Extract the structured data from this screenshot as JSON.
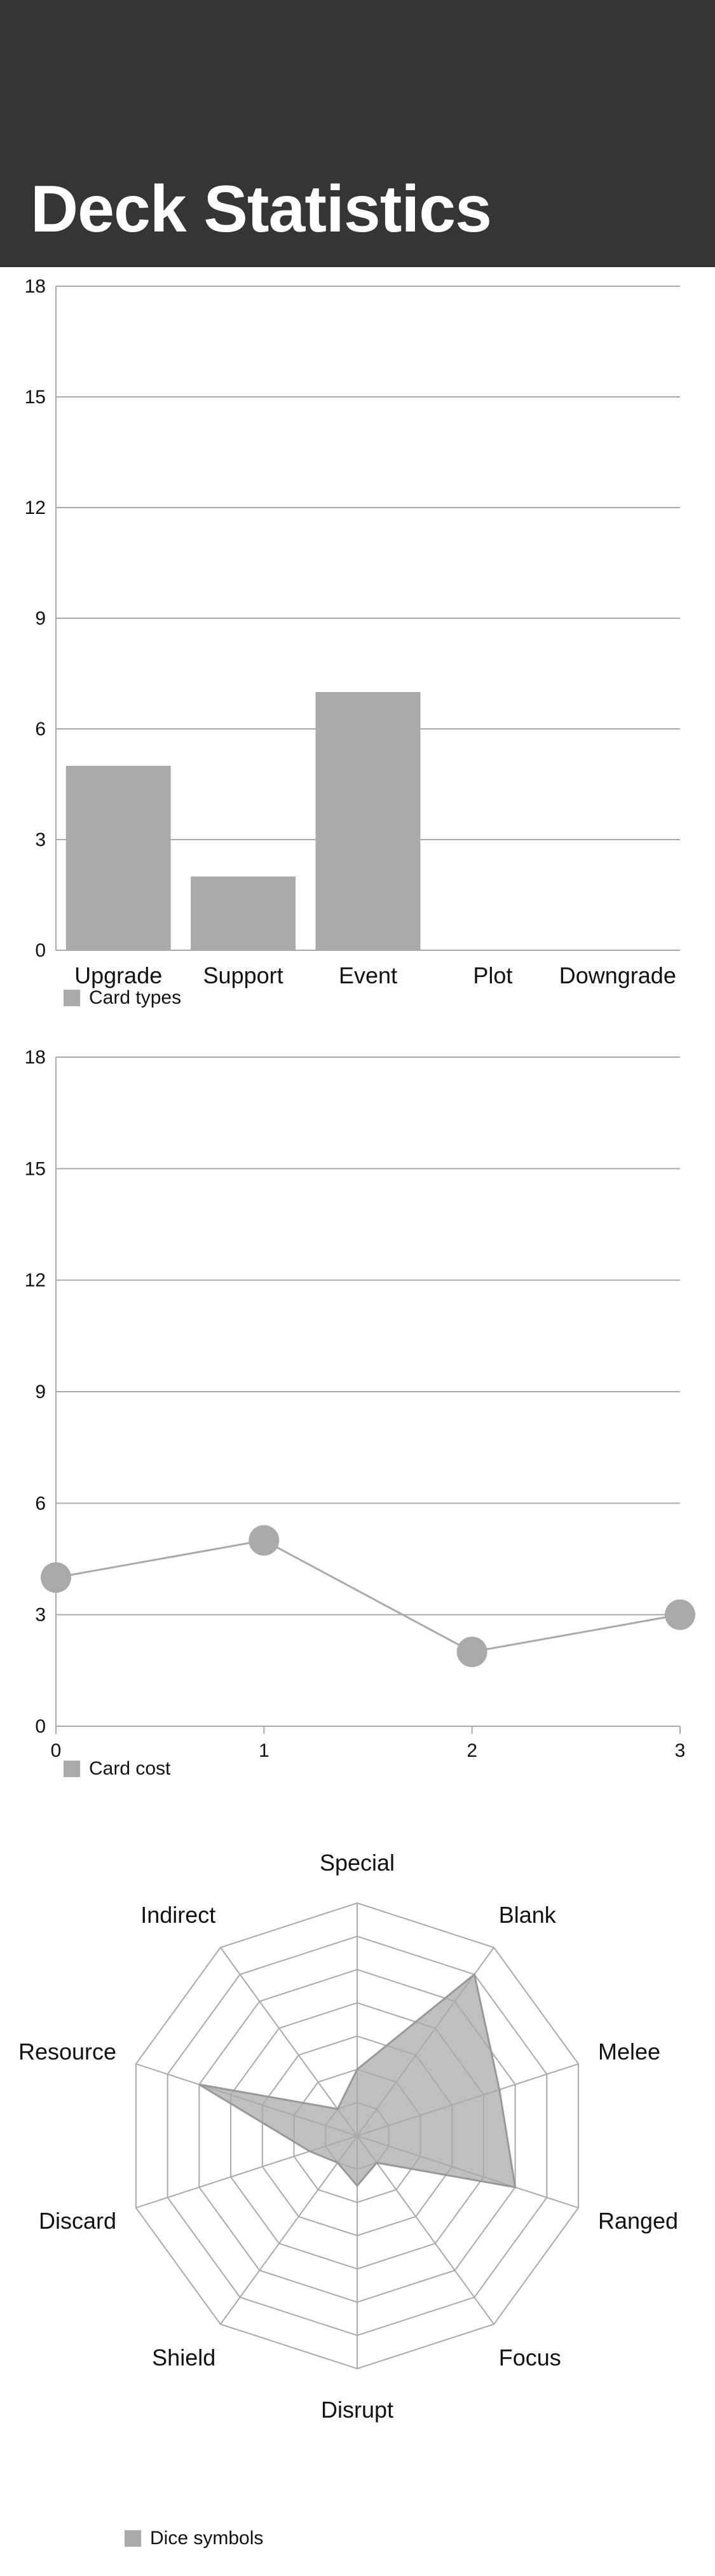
{
  "page": {
    "title": "Deck Statistics"
  },
  "chart_data": [
    {
      "type": "bar",
      "categories": [
        "Upgrade",
        "Support",
        "Event",
        "Plot",
        "Downgrade"
      ],
      "series": [
        {
          "name": "Card types",
          "values": [
            5,
            2,
            7,
            0,
            0
          ]
        }
      ],
      "ylim": [
        0,
        18
      ],
      "yticks": [
        0,
        3,
        6,
        9,
        12,
        15,
        18
      ],
      "grid": true,
      "legend": "bottom-left",
      "color": "#aaaaaa"
    },
    {
      "type": "line",
      "x": [
        0,
        1,
        2,
        3
      ],
      "series": [
        {
          "name": "Card cost",
          "values": [
            4,
            5,
            2,
            3
          ]
        }
      ],
      "xlim": [
        0,
        3
      ],
      "ylim": [
        0,
        18
      ],
      "yticks": [
        0,
        3,
        6,
        9,
        12,
        15,
        18
      ],
      "grid": true,
      "legend": "bottom-left",
      "color": "#aaaaaa"
    },
    {
      "type": "radar",
      "axes": [
        "Special",
        "Blank",
        "Melee",
        "Ranged",
        "Focus",
        "Disrupt",
        "Shield",
        "Discard",
        "Resource",
        "Indirect"
      ],
      "series": [
        {
          "name": "Dice symbols",
          "values": [
            2,
            6,
            4.5,
            5,
            1,
            1.5,
            1,
            1.5,
            5,
            1
          ]
        }
      ],
      "rmax": 7,
      "rings": 7,
      "legend": "bottom-left",
      "color": "#aaaaaa"
    }
  ]
}
